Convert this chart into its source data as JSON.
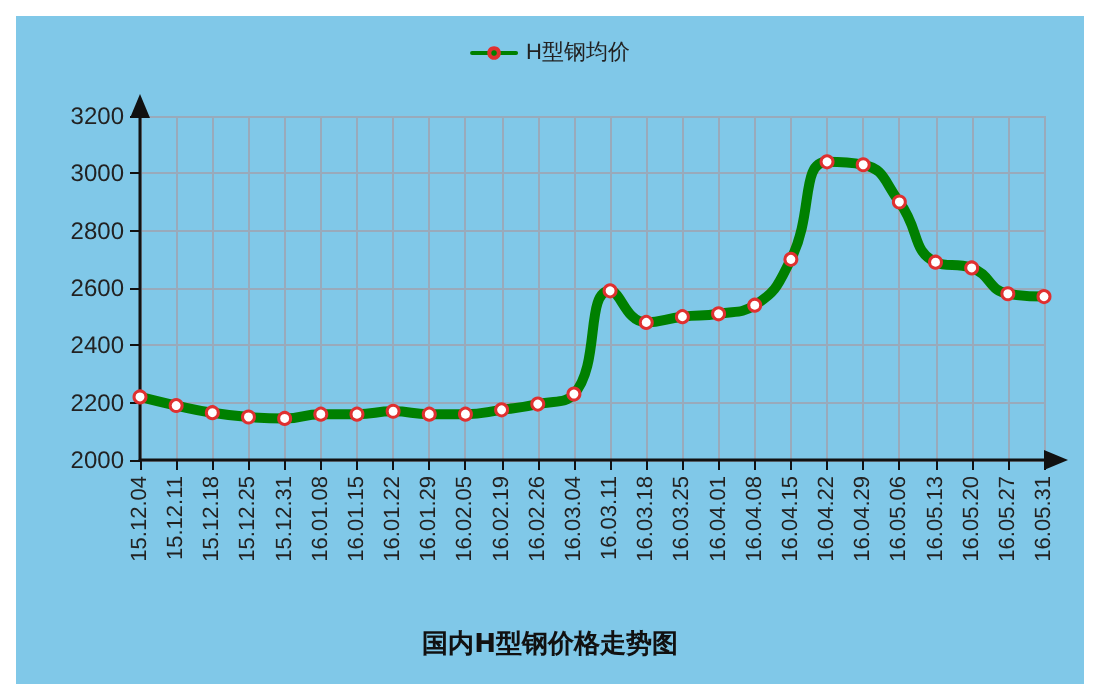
{
  "chart_data": {
    "type": "line",
    "title": "国内H型钢价格走势图",
    "categories": [
      "15.12.04",
      "15.12.11",
      "15.12.18",
      "15.12.25",
      "15.12.31",
      "16.01.08",
      "16.01.15",
      "16.01.22",
      "16.01.29",
      "16.02.05",
      "16.02.19",
      "16.02.26",
      "16.03.04",
      "16.03.11",
      "16.03.18",
      "16.03.25",
      "16.04.01",
      "16.04.08",
      "16.04.15",
      "16.04.22",
      "16.04.29",
      "16.05.06",
      "16.05.13",
      "16.05.20",
      "16.05.27",
      "16.05.31"
    ],
    "series": [
      {
        "name": "H型钢均价",
        "color": "#008000",
        "values": [
          2220,
          2190,
          2165,
          2150,
          2145,
          2160,
          2160,
          2170,
          2160,
          2160,
          2175,
          2195,
          2230,
          2590,
          2480,
          2500,
          2510,
          2540,
          2700,
          3040,
          3030,
          2900,
          2690,
          2670,
          2580,
          2570
        ]
      }
    ],
    "ylim": [
      2000,
      3200
    ],
    "yticks": [
      2000,
      2200,
      2400,
      2600,
      2800,
      3000,
      3200
    ],
    "grid": true,
    "legend": "top",
    "marker": "circle",
    "line_style": "solid"
  }
}
